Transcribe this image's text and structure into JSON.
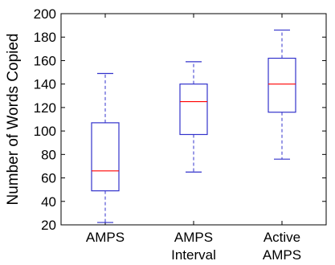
{
  "chart_data": {
    "type": "box",
    "title": "",
    "xlabel": "",
    "ylabel": "Number of Words Copied",
    "ylim": [
      20,
      200
    ],
    "yticks": [
      20,
      40,
      60,
      80,
      100,
      120,
      140,
      160,
      180,
      200
    ],
    "grid": false,
    "categories": [
      [
        "AMPS"
      ],
      [
        "AMPS",
        "Interval"
      ],
      [
        "Active",
        "AMPS"
      ]
    ],
    "boxes": [
      {
        "min": 22,
        "q1": 49,
        "median": 66,
        "q3": 107,
        "max": 149
      },
      {
        "min": 65,
        "q1": 97,
        "median": 125,
        "q3": 140,
        "max": 159
      },
      {
        "min": 76,
        "q1": 116,
        "median": 140,
        "q3": 162,
        "max": 186
      }
    ],
    "colors": {
      "box": "#3333cc",
      "median": "#ff0000",
      "whisker": "#3333cc",
      "axis": "#000000"
    }
  }
}
